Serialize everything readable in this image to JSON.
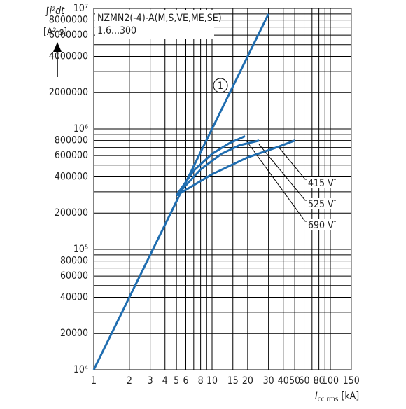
{
  "chart_data": {
    "type": "line",
    "title": "NZMN2(-4)-A(M,S,VE,ME,SE)",
    "subtitle": "1,6...300",
    "ylabel": "∫i²dt",
    "yunit": "[A² s]",
    "xlabel": {
      "symbol": "I",
      "subscript": "cc rms",
      "unit": "[kA]"
    },
    "log_x": true,
    "log_y": true,
    "grid": true,
    "xlim": [
      1,
      150
    ],
    "ylim": [
      10000,
      10000000
    ],
    "xticks": [
      1,
      2,
      3,
      4,
      5,
      6,
      8,
      10,
      15,
      20,
      30,
      40,
      50,
      60,
      80,
      100,
      150
    ],
    "x_minor_ticks": [
      7,
      9,
      70,
      90
    ],
    "yticks": [
      {
        "value": 10000,
        "label": "10⁴"
      },
      20000,
      40000,
      60000,
      80000,
      {
        "value": 100000,
        "label": "10⁵"
      },
      200000,
      400000,
      600000,
      800000,
      {
        "value": 1000000,
        "label": "10⁶"
      },
      2000000,
      4000000,
      6000000,
      8000000,
      {
        "value": 10000000,
        "label": "10⁷"
      }
    ],
    "y_minor_ticks": [
      30000,
      50000,
      70000,
      90000,
      300000,
      500000,
      700000,
      900000,
      3000000,
      5000000,
      7000000,
      9000000
    ],
    "series": [
      {
        "name": "1",
        "color": "#1f6db0",
        "x": [
          1,
          30
        ],
        "values": [
          10000,
          9000000
        ]
      },
      {
        "name": "415 V",
        "color": "#1f6db0",
        "x": [
          5,
          10,
          20,
          35,
          50
        ],
        "values": [
          280000,
          420000,
          580000,
          700000,
          800000
        ]
      },
      {
        "name": "525 V",
        "color": "#1f6db0",
        "x": [
          5,
          8,
          12,
          17,
          25
        ],
        "values": [
          280000,
          460000,
          620000,
          730000,
          800000
        ]
      },
      {
        "name": "690 V",
        "color": "#1f6db0",
        "x": [
          5,
          7,
          10,
          14,
          19
        ],
        "values": [
          280000,
          450000,
          620000,
          760000,
          870000
        ]
      }
    ]
  }
}
